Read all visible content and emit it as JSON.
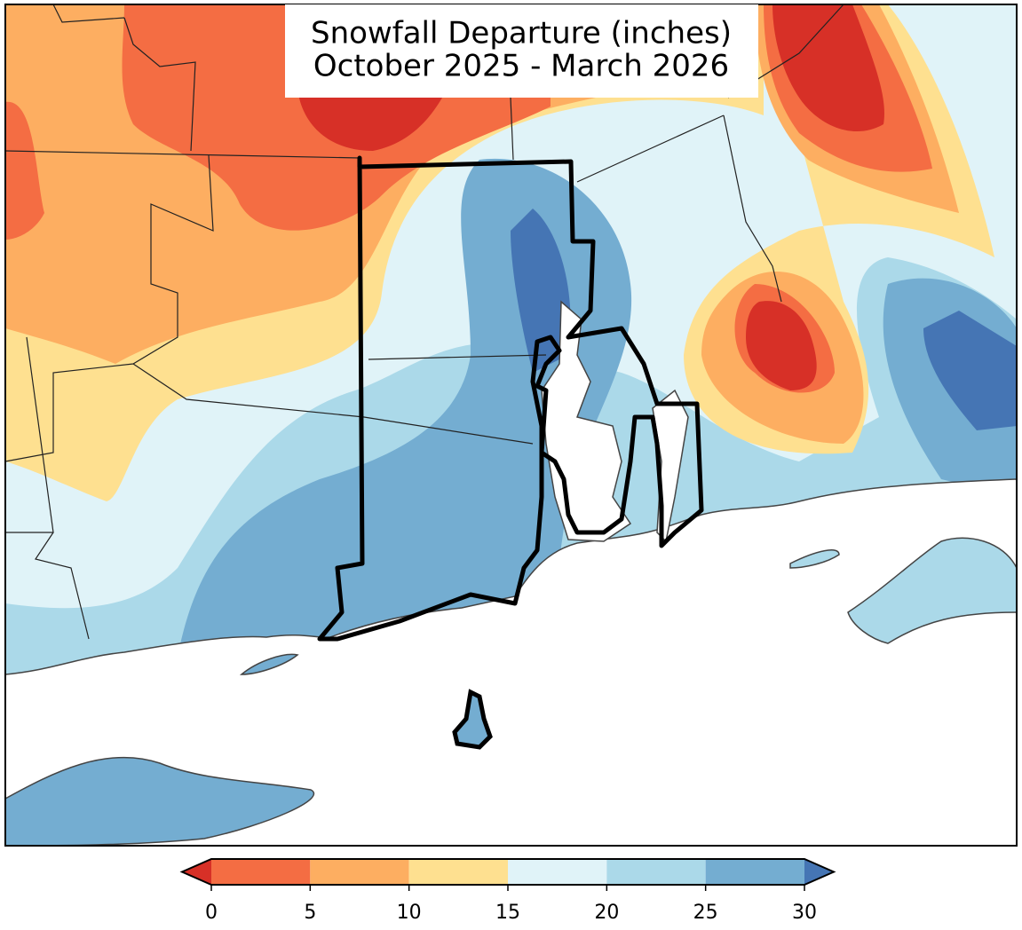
{
  "title": {
    "line1": "Snowfall Departure (inches)",
    "line2": "October 2025 - March 2026"
  },
  "colorbar": {
    "ticks": [
      0,
      5,
      10,
      15,
      20,
      25,
      30
    ],
    "colors": [
      "#f46d43",
      "#fdae61",
      "#fee090",
      "#e0f3f8",
      "#abd9e9",
      "#74add1"
    ],
    "under_color": "#d73027",
    "over_color": "#4575b4"
  }
}
